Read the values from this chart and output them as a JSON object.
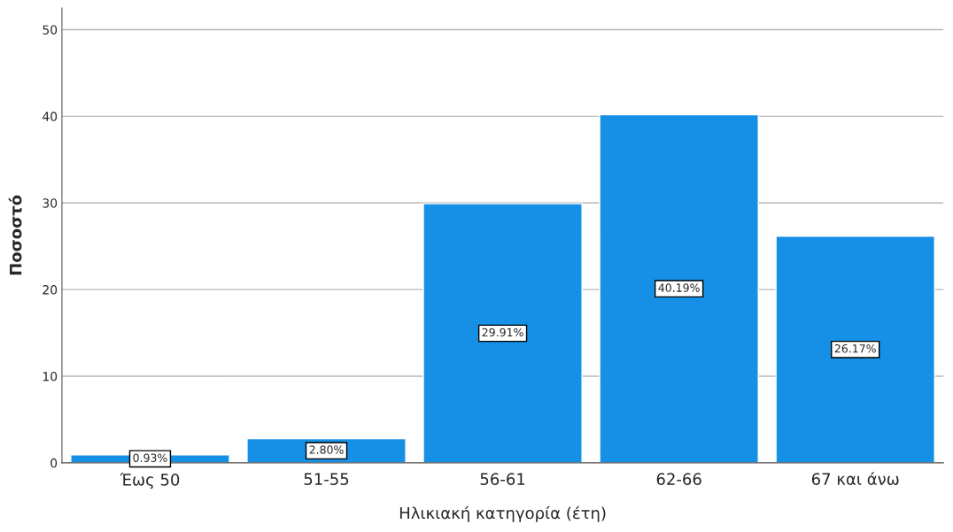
{
  "chart_data": {
    "type": "bar",
    "xlabel": "Ηλικιακή κατηγορία (έτη)",
    "ylabel": "Ποσοστό",
    "categories": [
      "Έως 50",
      "51-55",
      "56-61",
      "62-66",
      "67 και άνω"
    ],
    "values": [
      0.93,
      2.8,
      29.91,
      40.19,
      26.17
    ],
    "value_labels": [
      "0.93%",
      "2.80%",
      "29.91%",
      "40.19%",
      "26.17%"
    ],
    "color": "#1590e6",
    "ylim": [
      0,
      52.5
    ],
    "yticks": [
      0,
      10,
      20,
      30,
      40,
      50
    ],
    "grid": "y",
    "legend": false
  }
}
